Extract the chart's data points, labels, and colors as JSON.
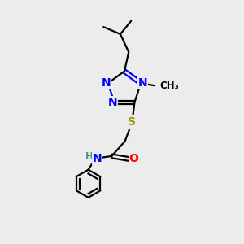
{
  "bg_color": "#ececec",
  "bond_color": "#000000",
  "N_color": "#0000ff",
  "S_color": "#999900",
  "O_color": "#ff0000",
  "H_color": "#4a9090",
  "line_width": 1.6,
  "font_size": 10,
  "fig_width": 3.0,
  "fig_height": 3.0,
  "dpi": 100,
  "xlim": [
    0,
    10
  ],
  "ylim": [
    0,
    10
  ]
}
